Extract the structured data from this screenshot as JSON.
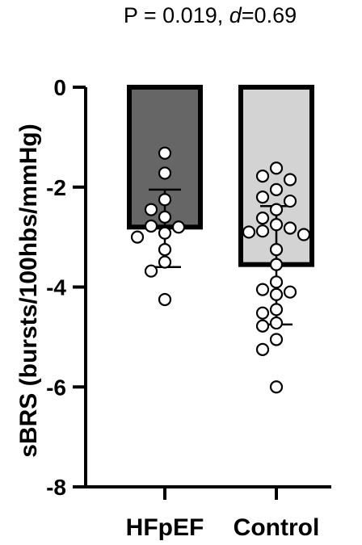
{
  "chart_data": {
    "type": "bar",
    "title": "P = 0.019, d=0.69",
    "title_parts": {
      "prefix": "P = 0.019, ",
      "italic": "d",
      "suffix": "=0.69"
    },
    "ylabel": "sBRS (bursts/100hbs/mmHg)",
    "xlabel": "",
    "categories": [
      "HFpEF",
      "Control"
    ],
    "values": [
      -2.8,
      -3.55
    ],
    "error_bars": [
      {
        "mean": -2.8,
        "upper": -2.05,
        "lower": -3.6
      },
      {
        "mean": -3.55,
        "upper": -2.38,
        "lower": -4.75
      }
    ],
    "bar_colors": [
      "#666666",
      "#d3d3d3"
    ],
    "points": [
      [
        -1.32,
        -1.72,
        -2.25,
        -2.45,
        -2.6,
        -2.78,
        -2.8,
        -2.92,
        -3.0,
        -3.25,
        -3.5,
        -3.68,
        -4.25
      ],
      [
        -1.62,
        -1.78,
        -1.85,
        -2.05,
        -2.2,
        -2.28,
        -2.45,
        -2.62,
        -2.75,
        -2.82,
        -2.88,
        -2.9,
        -2.95,
        -3.25,
        -3.55,
        -3.9,
        -4.05,
        -4.1,
        -4.15,
        -4.45,
        -4.52,
        -4.72,
        -4.78,
        -5.05,
        -5.25,
        -6.0
      ]
    ],
    "ylim": [
      -8,
      0
    ],
    "yticks": [
      0,
      -2,
      -4,
      -6,
      -8
    ],
    "ytick_labels": [
      "0",
      "-2",
      "-4",
      "-6",
      "-8"
    ],
    "grid": false
  }
}
